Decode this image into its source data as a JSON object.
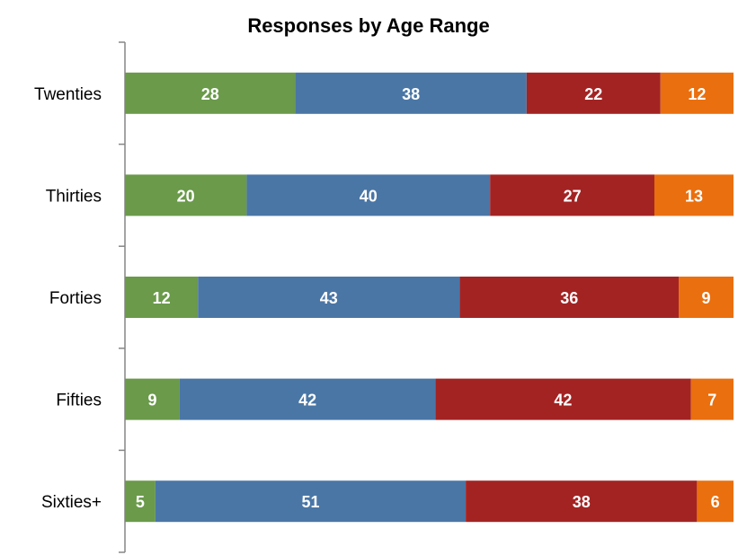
{
  "chart_data": {
    "type": "bar",
    "orientation": "horizontal",
    "stacked": true,
    "title": "Responses by Age Range",
    "xlabel": "",
    "ylabel": "",
    "categories": [
      "Twenties",
      "Thirties",
      "Forties",
      "Fifties",
      "Sixties+"
    ],
    "series": [
      {
        "values": [
          28,
          20,
          12,
          9,
          5
        ],
        "color": "#6a9a4a"
      },
      {
        "values": [
          38,
          40,
          43,
          42,
          51
        ],
        "color": "#4a76a6"
      },
      {
        "values": [
          22,
          27,
          36,
          42,
          38
        ],
        "color": "#a32323"
      },
      {
        "values": [
          12,
          13,
          9,
          7,
          6
        ],
        "color": "#ea6f0e"
      }
    ],
    "xlim": [
      0,
      100
    ],
    "grid": false,
    "legend": "none",
    "data_labels": true
  }
}
